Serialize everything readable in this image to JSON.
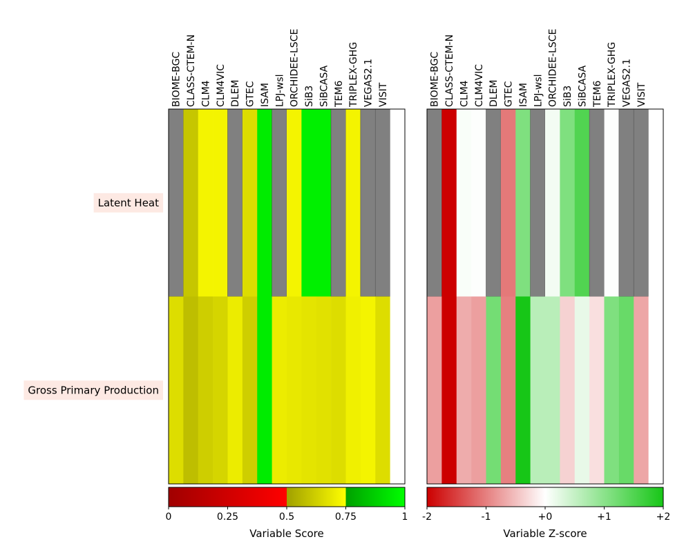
{
  "chart_data": [
    {
      "type": "heatmap",
      "models": [
        "BIOME-BGC",
        "CLASS-CTEM-N",
        "CLM4",
        "CLM4VIC",
        "DLEM",
        "GTEC",
        "ISAM",
        "LPJ-wsl",
        "ORCHIDEE-LSCE",
        "SiB3",
        "SiBCASA",
        "TEM6",
        "TRIPLEX-GHG",
        "VEGAS2.1",
        "VISIT",
        ""
      ],
      "variables": [
        "Latent Heat",
        "Gross Primary Production"
      ],
      "values": [
        [
          null,
          0.6,
          0.72,
          0.72,
          null,
          0.66,
          0.95,
          null,
          0.72,
          0.96,
          0.96,
          null,
          0.72,
          null,
          null,
          "blank"
        ],
        [
          0.66,
          0.58,
          0.62,
          0.64,
          0.7,
          0.62,
          0.95,
          0.7,
          0.69,
          0.68,
          0.67,
          0.66,
          0.71,
          0.72,
          0.66,
          "blank"
        ]
      ],
      "colorbar": {
        "label": "Variable Score",
        "ticks": [
          "0",
          "0.25",
          "0.5",
          "0.75",
          "1"
        ],
        "range": [
          0,
          1
        ],
        "segments": [
          {
            "from": 0,
            "to": 0.5,
            "colors": [
              "#a00000",
              "#ff0000"
            ]
          },
          {
            "from": 0.5,
            "to": 0.75,
            "colors": [
              "#a0a000",
              "#ffff00"
            ]
          },
          {
            "from": 0.75,
            "to": 1,
            "colors": [
              "#00a000",
              "#00ff00"
            ]
          }
        ]
      },
      "missing_color": "#808080",
      "blank_color": "#ffffff"
    },
    {
      "type": "heatmap",
      "models": [
        "BIOME-BGC",
        "CLASS-CTEM-N",
        "CLM4",
        "CLM4VIC",
        "DLEM",
        "GTEC",
        "ISAM",
        "LPJ-wsl",
        "ORCHIDEE-LSCE",
        "SiB3",
        "SiBCASA",
        "TEM6",
        "TRIPLEX-GHG",
        "VEGAS2.1",
        "VISIT",
        ""
      ],
      "variables": [
        "Latent Heat",
        "Gross Primary Production"
      ],
      "values": [
        [
          null,
          -2.0,
          0.05,
          0.02,
          null,
          -1.05,
          1.1,
          null,
          0.1,
          1.1,
          1.5,
          null,
          0.02,
          null,
          null,
          "blank"
        ],
        [
          -0.75,
          -2.0,
          -0.65,
          -0.75,
          1.2,
          -1.0,
          2.0,
          0.6,
          0.6,
          -0.35,
          0.2,
          -0.25,
          1.1,
          1.3,
          -0.7,
          "blank"
        ]
      ],
      "colorbar": {
        "label": "Variable Z-score",
        "ticks": [
          "-2",
          "-1",
          "+0",
          "+1",
          "+2"
        ],
        "range": [
          -2,
          2
        ],
        "colors": [
          "#cc0000",
          "#ffffff",
          "#17c617"
        ]
      },
      "missing_color": "#808080",
      "blank_color": "#ffffff"
    }
  ]
}
